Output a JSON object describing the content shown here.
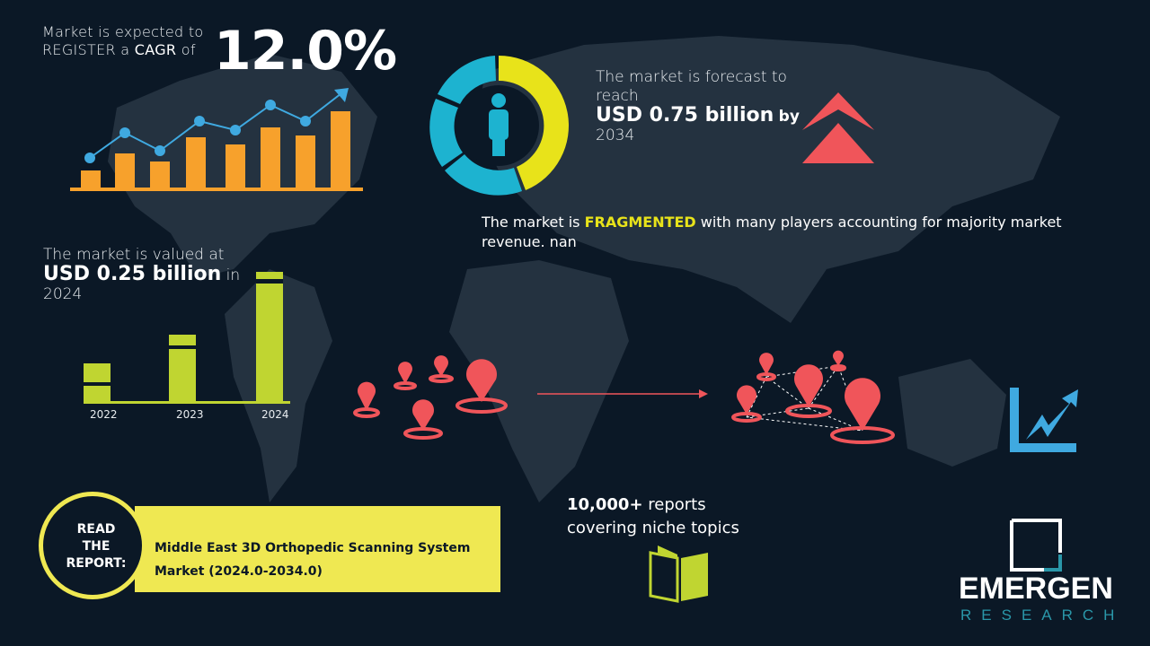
{
  "cagr": {
    "line1": "Market is expected to",
    "line2_pre": "REGISTER a ",
    "line2_bold": "CAGR",
    "line2_post": " of",
    "value": "12.0%"
  },
  "forecast": {
    "line1": "The market is forecast to reach",
    "value": "USD 0.75 billion",
    "by": "by",
    "year": "2034"
  },
  "fragmented": {
    "pre": "The market is ",
    "highlight": "FRAGMENTED",
    "post": " with many players accounting for majority market revenue. nan"
  },
  "valued": {
    "line1": "The market is valued at",
    "value": "USD 0.25 billion",
    "in": "in",
    "year": "2024"
  },
  "bar_years": [
    "2022",
    "2023",
    "2024"
  ],
  "reports": {
    "bold": "10,000+",
    "line1_post": " reports",
    "line2": "covering niche topics"
  },
  "report_banner": {
    "read_lines": [
      "READ",
      "THE",
      "REPORT:"
    ],
    "title_line1": "Middle East 3D Orthopedic Scanning System",
    "title_line2": "Market (2024.0-2034.0)"
  },
  "logo": {
    "word": "EMERGEN",
    "sub": "RESEARCH"
  },
  "colors": {
    "background": "#0b1826",
    "orange": "#f7a12c",
    "blue": "#3fa9e0",
    "yellow": "#e8e31a",
    "green": "#c0d531",
    "red": "#f0555a",
    "teal": "#1db3d0",
    "banner": "#efe852"
  },
  "icons": [
    "growth-chart-icon",
    "donut-person-icon",
    "double-chevron-up-icon",
    "location-pin-icon",
    "network-pins-icon",
    "trend-chart-icon",
    "open-book-icon"
  ]
}
